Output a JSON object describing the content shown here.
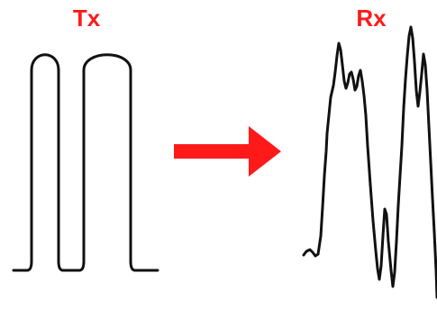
{
  "transmit": {
    "label": "Tx",
    "color": "#ff1a1a",
    "waveform": "two-rectangular-pulses"
  },
  "receive": {
    "label": "Rx",
    "color": "#ff1a1a",
    "waveform": "distorted-noisy-pulses"
  },
  "arrow": {
    "color": "#ff1a1a",
    "direction": "right"
  },
  "trace_color": "#111111"
}
